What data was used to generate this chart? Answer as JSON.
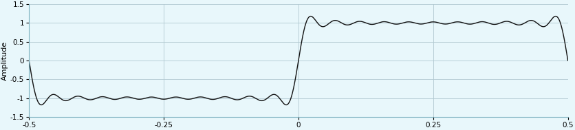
{
  "title": "",
  "xlabel": "",
  "ylabel": "Amplitude",
  "xlim": [
    -0.5,
    0.5
  ],
  "ylim": [
    -1.5,
    1.5
  ],
  "yticks": [
    -1.5,
    -1,
    -0.5,
    0,
    0.5,
    1,
    1.5
  ],
  "xticks": [
    -0.5,
    -0.25,
    0,
    0.25,
    0.5
  ],
  "n_harmonics": 11,
  "line_color": "#111111",
  "line_width": 1.0,
  "background_color": "#e8f7fb",
  "grid_color": "#b0c8d0",
  "ylabel_fontsize": 8,
  "tick_fontsize": 7.5
}
